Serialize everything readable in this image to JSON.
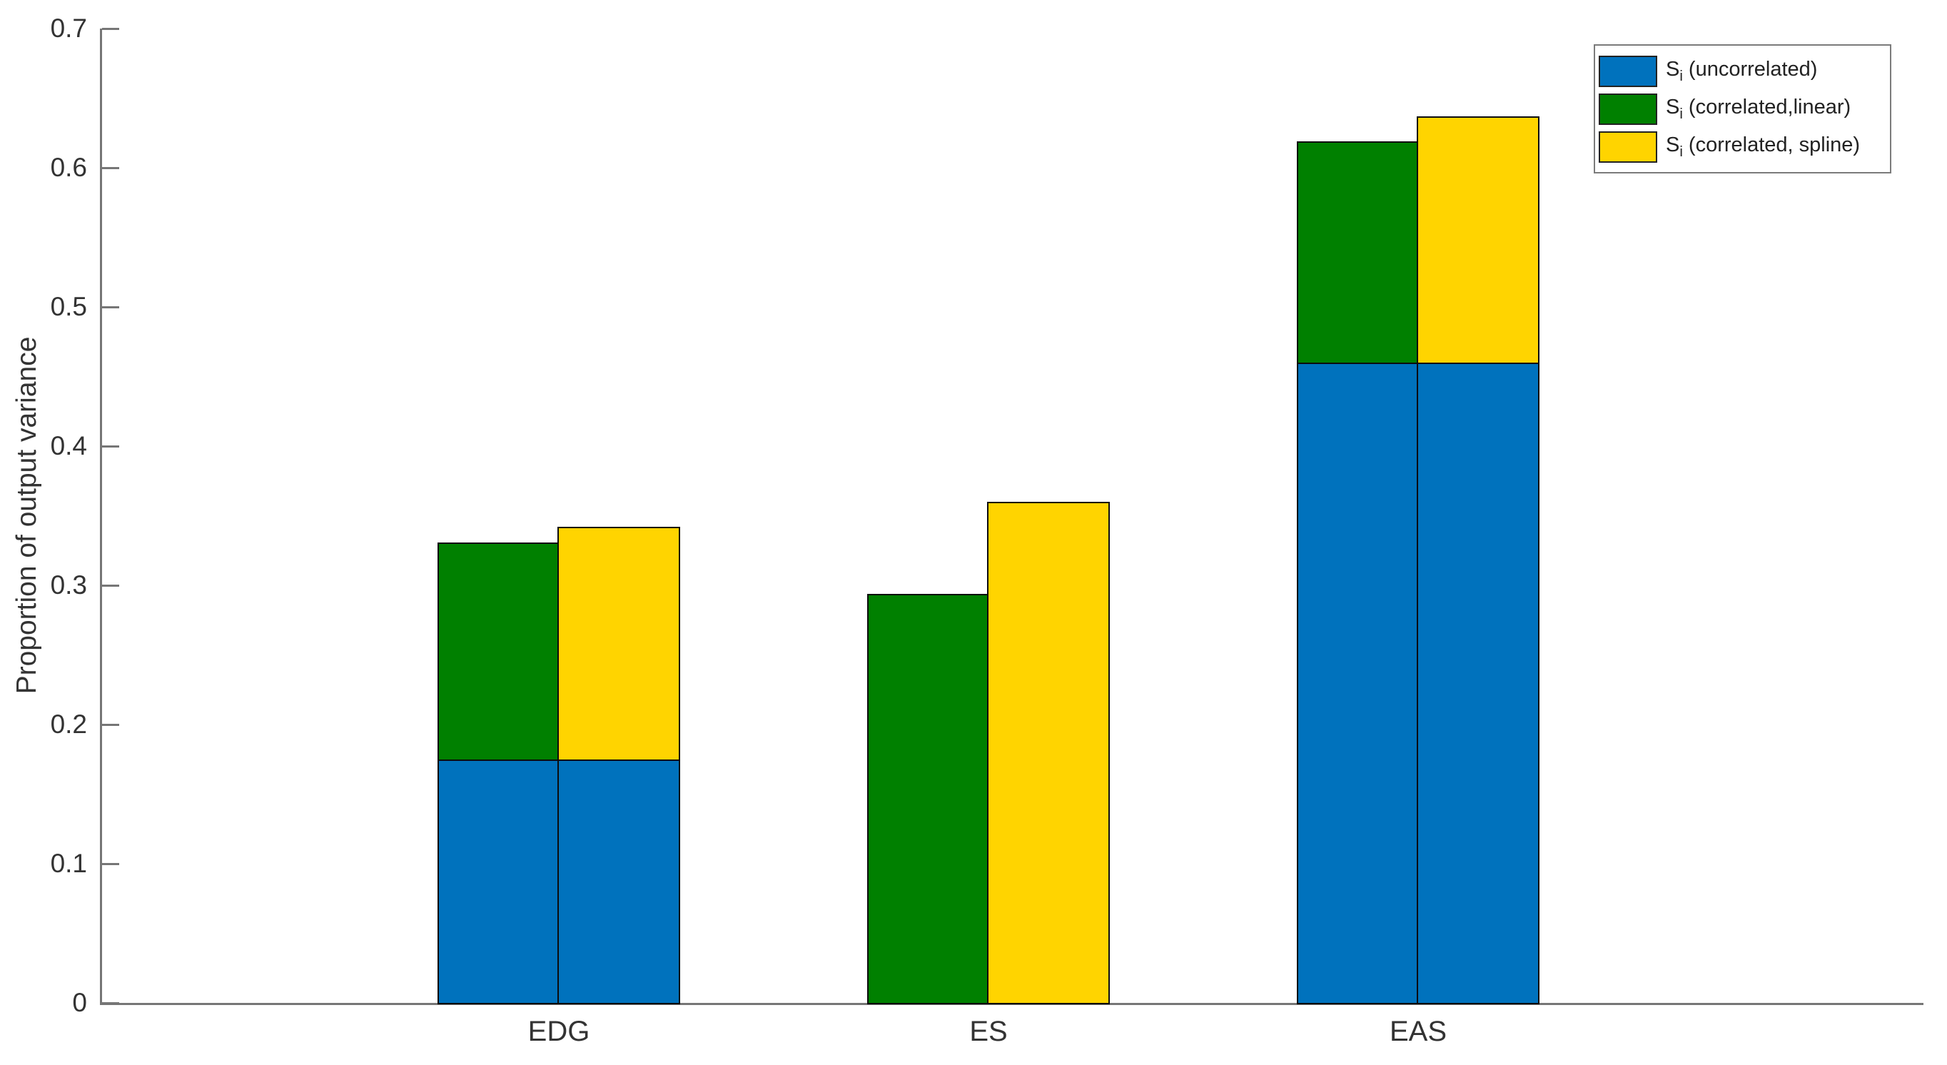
{
  "figure": {
    "background": "#ffffff",
    "axis_color": "#767676",
    "text_color": "#333333"
  },
  "chart_data": {
    "type": "bar",
    "variant": "two stacked bars side-by-side per category (blue+green = linear, blue+yellow = spline)",
    "title": "",
    "xlabel": "",
    "ylabel": "Proportion of output variance",
    "categories": [
      "EDG",
      "ES",
      "EAS"
    ],
    "ylim": [
      0,
      0.7
    ],
    "yticks": [
      0,
      0.1,
      0.2,
      0.3,
      0.4,
      0.5,
      0.6,
      0.7
    ],
    "ytick_labels": [
      "0",
      "0.1",
      "0.2",
      "0.3",
      "0.4",
      "0.5",
      "0.6",
      "0.7"
    ],
    "grid": false,
    "bar_edge_color": "#0c0c0c",
    "legend": {
      "position": "top-right",
      "border_color": "#7b7b7b"
    },
    "series": [
      {
        "name": "Si (uncorrelated)",
        "label_base": "S",
        "label_sub": "i",
        "label_rest": " (uncorrelated)",
        "color": "#0072BD",
        "role": "bottom segment of both stacked bars",
        "values": [
          0.175,
          0,
          0.46
        ]
      },
      {
        "name": "Si (correlated,linear)",
        "label_base": "S",
        "label_sub": "i",
        "label_rest": " (correlated,linear)",
        "color": "#008000",
        "role": "upper segment of left bar; values are bar-top totals",
        "values": [
          0.331,
          0.294,
          0.619
        ]
      },
      {
        "name": "Si (correlated, spline)",
        "label_base": "S",
        "label_sub": "i",
        "label_rest": " (correlated, spline)",
        "color": "#FFD400",
        "role": "upper segment of right bar; values are bar-top totals",
        "values": [
          0.342,
          0.36,
          0.637
        ]
      }
    ]
  }
}
